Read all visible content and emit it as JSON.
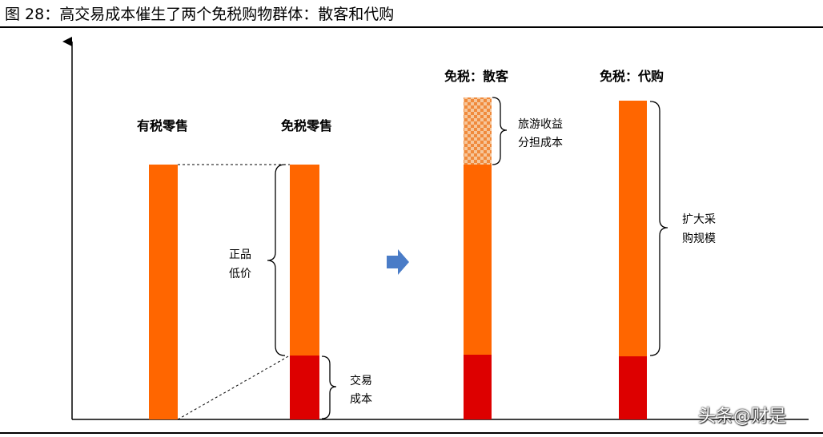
{
  "figure": {
    "title": "图 28：高交易成本催生了两个免税购物群体：散客和代购"
  },
  "columns": {
    "taxed_retail": "有税零售",
    "dutyfree_retail": "免税零售",
    "dutyfree_individual": "免税：散客",
    "dutyfree_daigou": "免税：代购"
  },
  "annotations": {
    "genuine_low_price": [
      "正品",
      "低价"
    ],
    "transaction_cost": [
      "交易",
      "成本"
    ],
    "tourism_cost_share": [
      "旅游收益",
      "分担成本"
    ],
    "expand_purchase_scale": [
      "扩大采",
      "购规模"
    ]
  },
  "colors": {
    "orange": "#ff6600",
    "red": "#dd0000",
    "arrow": "#4a7cc7",
    "checker_light": "#f6c69a",
    "checker_dark": "#f08a3c"
  },
  "icons": {
    "transition_arrow": "arrow-right-icon"
  },
  "watermark": "头条@财是"
}
